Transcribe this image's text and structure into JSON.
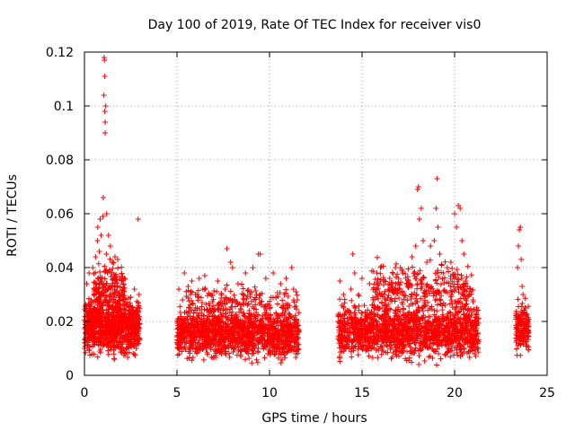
{
  "chart_data": {
    "type": "scatter",
    "title": "Day 100 of 2019, Rate Of TEC Index for receiver vis0",
    "xlabel": "GPS time / hours",
    "ylabel": "ROTI / TECUs",
    "xlim": [
      0,
      25
    ],
    "ylim": [
      0,
      0.12
    ],
    "xticks": [
      0,
      5,
      10,
      15,
      20,
      25
    ],
    "xtick_labels": [
      "0",
      "5",
      "10",
      "15",
      "20",
      "25"
    ],
    "yticks": [
      0,
      0.02,
      0.04,
      0.06,
      0.08,
      0.1,
      0.12
    ],
    "ytick_labels": [
      "0",
      "0.02",
      "0.04",
      "0.06",
      "0.08",
      "0.1",
      "0.12"
    ],
    "grid": true,
    "marker": "+",
    "color": "#ff0000",
    "series": [
      {
        "name": "ROTI",
        "points": [
          [
            0.05,
            0.012
          ],
          [
            0.08,
            0.018
          ],
          [
            0.1,
            0.025
          ],
          [
            0.12,
            0.034
          ],
          [
            0.15,
            0.01
          ],
          [
            0.2,
            0.022
          ],
          [
            0.25,
            0.038
          ],
          [
            0.3,
            0.015
          ],
          [
            0.35,
            0.028
          ],
          [
            0.4,
            0.02
          ],
          [
            0.45,
            0.04
          ],
          [
            0.5,
            0.013
          ],
          [
            0.55,
            0.03
          ],
          [
            0.6,
            0.044
          ],
          [
            0.65,
            0.018
          ],
          [
            0.7,
            0.05
          ],
          [
            0.72,
            0.055
          ],
          [
            0.75,
            0.024
          ],
          [
            0.8,
            0.046
          ],
          [
            0.85,
            0.058
          ],
          [
            0.88,
            0.035
          ],
          [
            0.9,
            0.052
          ],
          [
            0.95,
            0.016
          ],
          [
            1.0,
            0.059
          ],
          [
            1.02,
            0.066
          ],
          [
            1.05,
            0.104
          ],
          [
            1.06,
            0.118
          ],
          [
            1.08,
            0.117
          ],
          [
            1.1,
            0.111
          ],
          [
            1.1,
            0.098
          ],
          [
            1.12,
            0.094
          ],
          [
            1.12,
            0.09
          ],
          [
            1.15,
            0.1
          ],
          [
            1.18,
            0.045
          ],
          [
            1.2,
            0.06
          ],
          [
            1.25,
            0.038
          ],
          [
            1.3,
            0.052
          ],
          [
            1.35,
            0.028
          ],
          [
            1.4,
            0.048
          ],
          [
            1.45,
            0.033
          ],
          [
            1.5,
            0.042
          ],
          [
            1.55,
            0.02
          ],
          [
            1.6,
            0.036
          ],
          [
            1.65,
            0.044
          ],
          [
            1.7,
            0.025
          ],
          [
            1.8,
            0.043
          ],
          [
            1.9,
            0.03
          ],
          [
            2.0,
            0.022
          ],
          [
            2.1,
            0.034
          ],
          [
            2.2,
            0.015
          ],
          [
            2.3,
            0.026
          ],
          [
            2.4,
            0.012
          ],
          [
            2.5,
            0.029
          ],
          [
            2.6,
            0.018
          ],
          [
            2.7,
            0.032
          ],
          [
            2.8,
            0.01
          ],
          [
            2.85,
            0.024
          ],
          [
            2.9,
            0.058
          ],
          [
            2.95,
            0.03
          ],
          [
            5.0,
            0.02
          ],
          [
            5.1,
            0.032
          ],
          [
            5.2,
            0.015
          ],
          [
            5.3,
            0.028
          ],
          [
            5.4,
            0.038
          ],
          [
            5.5,
            0.012
          ],
          [
            5.6,
            0.033
          ],
          [
            5.7,
            0.022
          ],
          [
            5.8,
            0.035
          ],
          [
            5.9,
            0.018
          ],
          [
            6.0,
            0.03
          ],
          [
            6.1,
            0.025
          ],
          [
            6.2,
            0.036
          ],
          [
            6.3,
            0.014
          ],
          [
            6.4,
            0.032
          ],
          [
            6.5,
            0.037
          ],
          [
            6.6,
            0.02
          ],
          [
            6.8,
            0.03
          ],
          [
            7.0,
            0.024
          ],
          [
            7.2,
            0.035
          ],
          [
            7.4,
            0.018
          ],
          [
            7.6,
            0.032
          ],
          [
            7.7,
            0.047
          ],
          [
            7.8,
            0.028
          ],
          [
            7.9,
            0.042
          ],
          [
            8.0,
            0.04
          ],
          [
            8.1,
            0.022
          ],
          [
            8.3,
            0.034
          ],
          [
            8.5,
            0.016
          ],
          [
            8.7,
            0.038
          ],
          [
            8.9,
            0.024
          ],
          [
            9.1,
            0.04
          ],
          [
            9.3,
            0.03
          ],
          [
            9.4,
            0.045
          ],
          [
            9.5,
            0.045
          ],
          [
            9.6,
            0.02
          ],
          [
            9.8,
            0.036
          ],
          [
            10.0,
            0.026
          ],
          [
            10.2,
            0.038
          ],
          [
            10.4,
            0.022
          ],
          [
            10.6,
            0.034
          ],
          [
            10.8,
            0.03
          ],
          [
            10.9,
            0.036
          ],
          [
            11.0,
            0.025
          ],
          [
            11.2,
            0.04
          ],
          [
            11.3,
            0.032
          ],
          [
            11.4,
            0.018
          ],
          [
            11.5,
            0.028
          ],
          [
            13.7,
            0.02
          ],
          [
            13.8,
            0.035
          ],
          [
            13.9,
            0.026
          ],
          [
            14.0,
            0.03
          ],
          [
            14.2,
            0.024
          ],
          [
            14.4,
            0.032
          ],
          [
            14.5,
            0.045
          ],
          [
            14.6,
            0.038
          ],
          [
            14.8,
            0.03
          ],
          [
            15.0,
            0.036
          ],
          [
            15.2,
            0.022
          ],
          [
            15.4,
            0.034
          ],
          [
            15.6,
            0.028
          ],
          [
            15.8,
            0.038
          ],
          [
            16.0,
            0.04
          ],
          [
            16.2,
            0.03
          ],
          [
            16.5,
            0.036
          ],
          [
            16.8,
            0.04
          ],
          [
            17.0,
            0.032
          ],
          [
            17.2,
            0.038
          ],
          [
            17.5,
            0.035
          ],
          [
            17.7,
            0.044
          ],
          [
            17.9,
            0.048
          ],
          [
            18.0,
            0.069
          ],
          [
            18.05,
            0.07
          ],
          [
            18.1,
            0.058
          ],
          [
            18.2,
            0.062
          ],
          [
            18.3,
            0.05
          ],
          [
            18.5,
            0.042
          ],
          [
            18.7,
            0.048
          ],
          [
            18.9,
            0.05
          ],
          [
            19.0,
            0.062
          ],
          [
            19.05,
            0.073
          ],
          [
            19.1,
            0.055
          ],
          [
            19.2,
            0.045
          ],
          [
            19.4,
            0.038
          ],
          [
            19.6,
            0.04
          ],
          [
            19.8,
            0.042
          ],
          [
            20.0,
            0.06
          ],
          [
            20.1,
            0.055
          ],
          [
            20.2,
            0.063
          ],
          [
            20.3,
            0.062
          ],
          [
            20.4,
            0.05
          ],
          [
            20.5,
            0.045
          ],
          [
            20.6,
            0.035
          ],
          [
            20.8,
            0.03
          ],
          [
            21.0,
            0.028
          ],
          [
            21.2,
            0.024
          ],
          [
            23.4,
            0.04
          ],
          [
            23.45,
            0.048
          ],
          [
            23.5,
            0.054
          ],
          [
            23.55,
            0.055
          ],
          [
            23.6,
            0.043
          ],
          [
            23.65,
            0.033
          ],
          [
            23.7,
            0.03
          ],
          [
            23.8,
            0.025
          ],
          [
            23.9,
            0.02
          ],
          [
            24.0,
            0.018
          ]
        ],
        "bands": [
          {
            "x_range": [
              0.0,
              3.0
            ],
            "y_range": [
              0.004,
              0.032
            ],
            "density": 900
          },
          {
            "x_range": [
              0.5,
              2.2
            ],
            "y_range": [
              0.02,
              0.045
            ],
            "density": 180
          },
          {
            "x_range": [
              5.0,
              11.6
            ],
            "y_range": [
              0.003,
              0.028
            ],
            "density": 1400
          },
          {
            "x_range": [
              5.5,
              11.5
            ],
            "y_range": [
              0.02,
              0.035
            ],
            "density": 160
          },
          {
            "x_range": [
              13.7,
              21.3
            ],
            "y_range": [
              0.003,
              0.03
            ],
            "density": 1500
          },
          {
            "x_range": [
              15.5,
              21.0
            ],
            "y_range": [
              0.02,
              0.045
            ],
            "density": 300
          },
          {
            "x_range": [
              23.3,
              24.0
            ],
            "y_range": [
              0.004,
              0.03
            ],
            "density": 160
          }
        ]
      }
    ]
  }
}
